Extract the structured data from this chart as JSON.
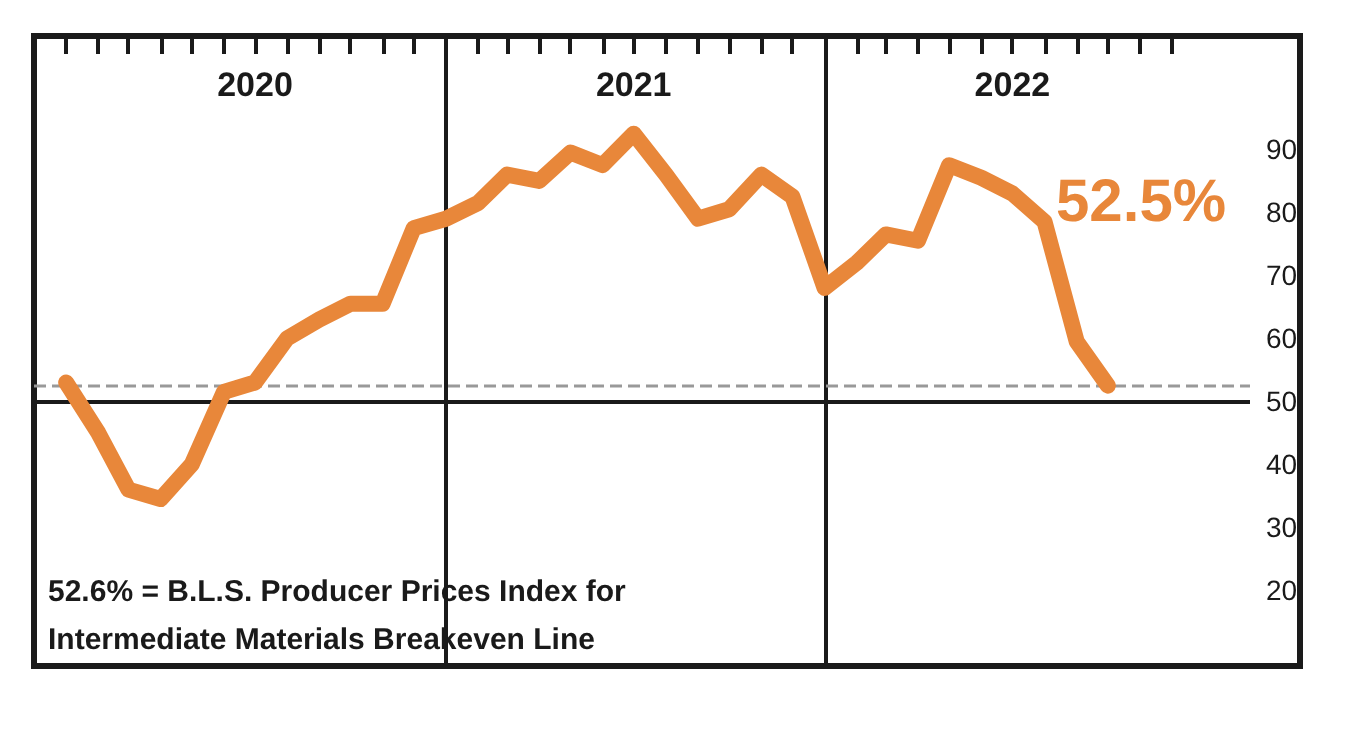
{
  "chart_data": {
    "type": "line",
    "x": [
      "2020-01",
      "2020-02",
      "2020-03",
      "2020-04",
      "2020-05",
      "2020-06",
      "2020-07",
      "2020-08",
      "2020-09",
      "2020-10",
      "2020-11",
      "2020-12",
      "2021-01",
      "2021-02",
      "2021-03",
      "2021-04",
      "2021-05",
      "2021-06",
      "2021-07",
      "2021-08",
      "2021-09",
      "2021-10",
      "2021-11",
      "2021-12",
      "2022-01",
      "2022-02",
      "2022-03",
      "2022-04",
      "2022-05",
      "2022-06",
      "2022-07",
      "2022-08",
      "2022-09",
      "2022-10"
    ],
    "series": [
      {
        "color": "#e8873a",
        "values": [
          53,
          45,
          36,
          34.5,
          40,
          51.5,
          53,
          60,
          63,
          65.5,
          65.5,
          77.5,
          79,
          81.5,
          86,
          85,
          89.5,
          87.5,
          92.5,
          86,
          79,
          80.5,
          86,
          82.5,
          68,
          72,
          76.5,
          75.5,
          87.5,
          85.5,
          83,
          78.5,
          59.5,
          52.5
        ]
      }
    ],
    "xlim": [
      "2019-12-01",
      "2023-02-15"
    ],
    "xticks": [
      {
        "value": "2020-01",
        "label": null
      },
      {
        "value": "2020-02",
        "label": null
      },
      {
        "value": "2020-03",
        "label": null
      },
      {
        "value": "2020-04",
        "label": null
      },
      {
        "value": "2020-05",
        "label": null
      },
      {
        "value": "2020-06",
        "label": null
      },
      {
        "value": "2020-07",
        "label": "2020"
      },
      {
        "value": "2020-08",
        "label": null
      },
      {
        "value": "2020-09",
        "label": null
      },
      {
        "value": "2020-10",
        "label": null
      },
      {
        "value": "2020-11",
        "label": null
      },
      {
        "value": "2020-12",
        "label": null
      },
      {
        "value": "2021-01",
        "label": null
      },
      {
        "value": "2021-02",
        "label": null
      },
      {
        "value": "2021-03",
        "label": null
      },
      {
        "value": "2021-04",
        "label": null
      },
      {
        "value": "2021-05",
        "label": null
      },
      {
        "value": "2021-06",
        "label": null
      },
      {
        "value": "2021-07",
        "label": "2021"
      },
      {
        "value": "2021-08",
        "label": null
      },
      {
        "value": "2021-09",
        "label": null
      },
      {
        "value": "2021-10",
        "label": null
      },
      {
        "value": "2021-11",
        "label": null
      },
      {
        "value": "2021-12",
        "label": null
      },
      {
        "value": "2022-01",
        "label": null
      },
      {
        "value": "2022-02",
        "label": null
      },
      {
        "value": "2022-03",
        "label": null
      },
      {
        "value": "2022-04",
        "label": null
      },
      {
        "value": "2022-05",
        "label": null
      },
      {
        "value": "2022-06",
        "label": null
      },
      {
        "value": "2022-07",
        "label": "2022"
      },
      {
        "value": "2022-08",
        "label": null
      },
      {
        "value": "2022-09",
        "label": null
      },
      {
        "value": "2022-10",
        "label": null
      },
      {
        "value": "2022-11",
        "label": null
      },
      {
        "value": "2022-12",
        "label": null
      }
    ],
    "ylim": [
      8,
      108
    ],
    "yticks": [
      20,
      30,
      40,
      50,
      60,
      70,
      80,
      90
    ],
    "ref_lines": [
      {
        "axis": "x",
        "value": "2021-01",
        "color": "#1a1a1a",
        "line_style": "solid"
      },
      {
        "axis": "x",
        "value": "2022-01",
        "color": "#1a1a1a",
        "line_style": "solid"
      },
      {
        "axis": "y",
        "value": 50,
        "color": "#1a1a1a",
        "line_style": "solid"
      },
      {
        "axis": "y",
        "value": 52.6,
        "color": "#999999",
        "line_style": "dashed"
      }
    ],
    "annotations": [
      "52.5%",
      "52.6% = B.L.S. Producer Prices Index for Intermediate Materials Breakeven Line"
    ],
    "grid": false,
    "line_style": "solid"
  }
}
